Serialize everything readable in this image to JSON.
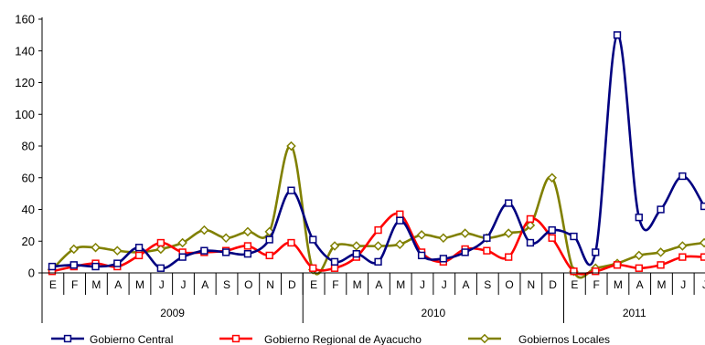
{
  "chart_data": {
    "type": "line",
    "x_months": [
      "E",
      "F",
      "M",
      "A",
      "M",
      "J",
      "J",
      "A",
      "S",
      "O",
      "N",
      "D",
      "E",
      "F",
      "M",
      "A",
      "M",
      "J",
      "J",
      "A",
      "S",
      "O",
      "N",
      "D",
      "E",
      "F",
      "M",
      "A",
      "M",
      "J",
      "J"
    ],
    "years": [
      {
        "label": "2009",
        "start_index": 0,
        "count": 12
      },
      {
        "label": "2010",
        "start_index": 12,
        "count": 12
      },
      {
        "label": "2011",
        "start_index": 24,
        "count": 7
      }
    ],
    "yticks": [
      0,
      20,
      40,
      60,
      80,
      100,
      120,
      140,
      160
    ],
    "ylim": [
      0,
      160
    ],
    "grid": false,
    "legend_position": "bottom",
    "series": [
      {
        "name": "Gobierno Central",
        "color": "#000080",
        "marker": "square",
        "values": [
          4,
          5,
          4,
          6,
          16,
          3,
          10,
          14,
          13,
          12,
          21,
          52,
          21,
          7,
          12,
          7,
          33,
          11,
          9,
          13,
          22,
          44,
          19,
          27,
          23,
          13,
          150,
          35,
          40,
          61,
          42
        ]
      },
      {
        "name": "Gobierno Regional de Ayacucho",
        "color": "#ff0000",
        "marker": "square",
        "values": [
          1,
          4,
          6,
          4,
          11,
          19,
          13,
          13,
          14,
          17,
          11,
          19,
          3,
          3,
          10,
          27,
          37,
          13,
          7,
          15,
          14,
          10,
          34,
          22,
          1,
          1,
          5,
          3,
          5,
          10,
          10
        ]
      },
      {
        "name": "Gobiernos Locales",
        "color": "#808000",
        "marker": "diamond",
        "values": [
          2,
          15,
          16,
          14,
          13,
          15,
          19,
          27,
          22,
          26,
          26,
          80,
          2,
          17,
          17,
          17,
          18,
          24,
          22,
          25,
          22,
          25,
          30,
          60,
          1,
          3,
          6,
          11,
          13,
          17,
          19
        ]
      }
    ]
  }
}
